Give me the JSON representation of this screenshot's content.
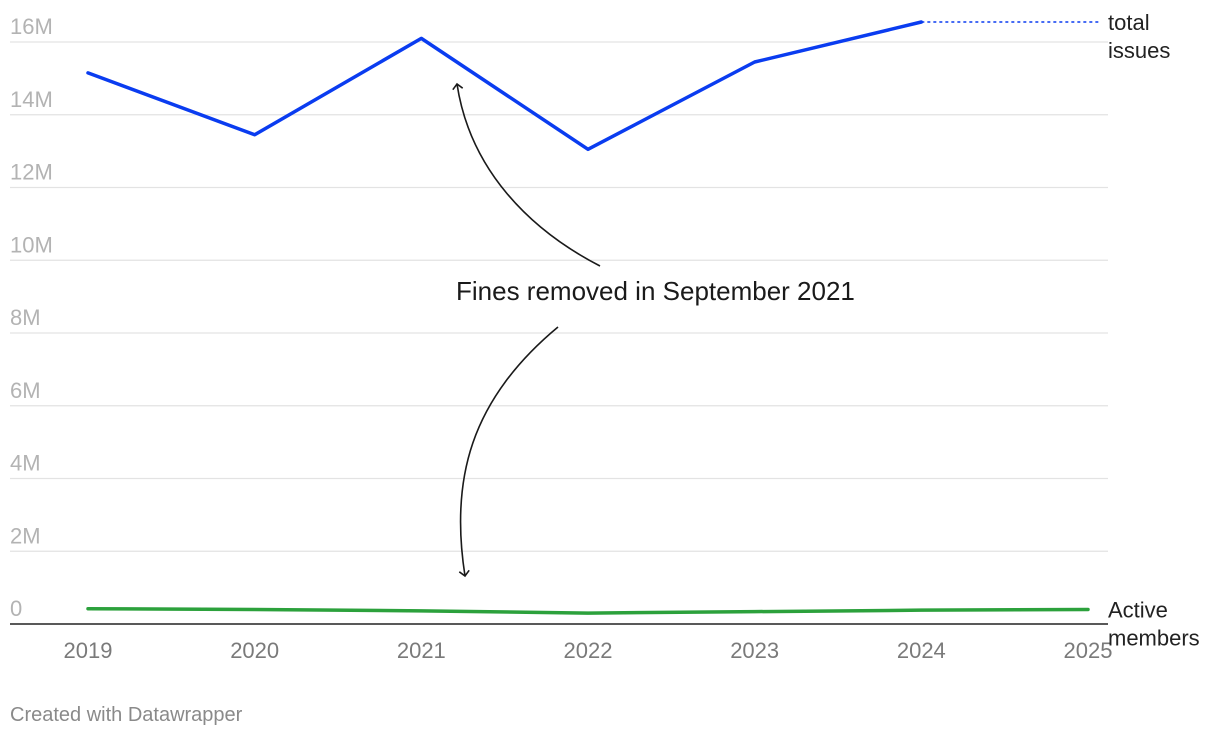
{
  "chart_data": {
    "type": "line",
    "x": [
      2019,
      2020,
      2021,
      2022,
      2023,
      2024,
      2025
    ],
    "ylim": [
      0,
      16000000
    ],
    "yticks": [
      {
        "value": 0,
        "label": "0"
      },
      {
        "value": 2000000,
        "label": "2M"
      },
      {
        "value": 4000000,
        "label": "4M"
      },
      {
        "value": 6000000,
        "label": "6M"
      },
      {
        "value": 8000000,
        "label": "8M"
      },
      {
        "value": 10000000,
        "label": "10M"
      },
      {
        "value": 12000000,
        "label": "12M"
      },
      {
        "value": 14000000,
        "label": "14M"
      },
      {
        "value": 16000000,
        "label": "16M"
      }
    ],
    "xticks": [
      "2019",
      "2020",
      "2021",
      "2022",
      "2023",
      "2024",
      "2025"
    ],
    "grid": true,
    "series": [
      {
        "name": "total issues",
        "label_lines": [
          "total",
          "issues"
        ],
        "color": "#0a3cf0",
        "values": [
          15150000,
          13450000,
          16100000,
          13050000,
          15450000,
          16550000,
          null
        ],
        "projection": {
          "from_x": 2024,
          "to_x": 2025,
          "value": 16550000,
          "style": "dotted"
        }
      },
      {
        "name": "Active members",
        "label_lines": [
          "Active",
          "members"
        ],
        "color": "#2ca13c",
        "values": [
          420000,
          400000,
          360000,
          300000,
          340000,
          380000,
          400000
        ]
      }
    ],
    "annotations": [
      {
        "text": "Fines removed in September 2021"
      }
    ]
  },
  "footer": {
    "credit": "Created with Datawrapper"
  }
}
